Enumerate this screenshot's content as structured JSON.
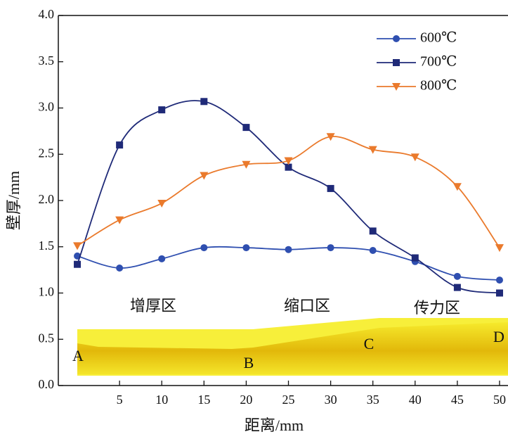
{
  "chart_data": {
    "type": "line",
    "xlabel": "距离/mm",
    "ylabel": "壁厚/mm",
    "x": [
      0,
      5,
      10,
      15,
      20,
      25,
      30,
      35,
      40,
      45,
      50
    ],
    "series": [
      {
        "name": "600℃",
        "color": "#2f4fb0",
        "marker": "circle",
        "values": [
          1.4,
          1.27,
          1.37,
          1.49,
          1.49,
          1.47,
          1.49,
          1.46,
          1.34,
          1.18,
          1.14
        ]
      },
      {
        "name": "700℃",
        "color": "#1f2a78",
        "marker": "square",
        "values": [
          1.31,
          2.6,
          2.98,
          3.07,
          2.79,
          2.36,
          2.13,
          1.67,
          1.38,
          1.06,
          1.0
        ]
      },
      {
        "name": "800℃",
        "color": "#ea7a2c",
        "marker": "triangle-down",
        "values": [
          1.51,
          1.79,
          1.97,
          2.27,
          2.39,
          2.43,
          2.69,
          2.55,
          2.47,
          2.15,
          1.49
        ]
      }
    ],
    "xlim": [
      -2.25,
      51
    ],
    "ylim": [
      0,
      4
    ],
    "xticks": [
      5,
      10,
      15,
      20,
      25,
      30,
      35,
      40,
      45,
      50
    ],
    "yticks": [
      {
        "value": 0,
        "label": "0.0"
      },
      {
        "value": 0.5,
        "label": "0.5"
      },
      {
        "value": 1,
        "label": "1.0"
      },
      {
        "value": 1.5,
        "label": "1.5"
      },
      {
        "value": 2,
        "label": "2.0"
      },
      {
        "value": 2.5,
        "label": "2.5"
      },
      {
        "value": 3,
        "label": "3.0"
      },
      {
        "value": 3.5,
        "label": "3.5"
      },
      {
        "value": 4,
        "label": "4.0"
      }
    ],
    "legend": "upper right",
    "annotations": [
      "增厚区",
      "缩口区",
      "传力区",
      "A",
      "B",
      "C",
      "D"
    ]
  }
}
